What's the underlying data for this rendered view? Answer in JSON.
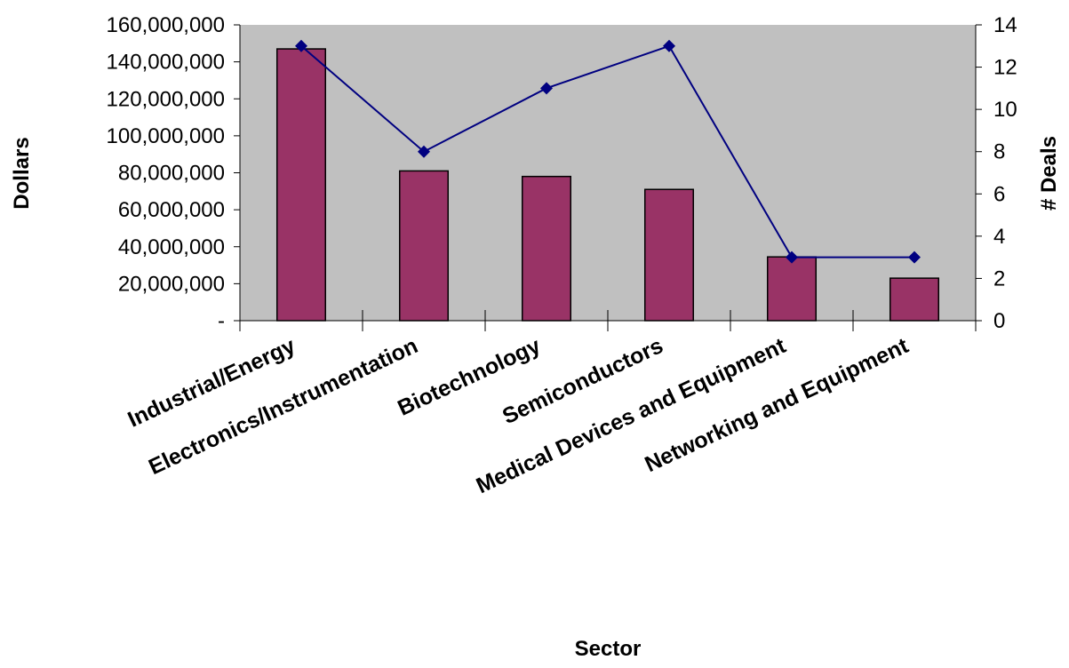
{
  "chart_data": {
    "type": "bar",
    "xlabel": "Sector",
    "ylabel": "Dollars",
    "y2label": "# Deals",
    "categories": [
      "Industrial/Energy",
      "Electronics/Instrumentation",
      "Biotechnology",
      "Semiconductors",
      "Medical Devices and Equipment",
      "Networking and Equipment"
    ],
    "series": [
      {
        "type": "bar",
        "axis": "left",
        "color": "#993366",
        "values": [
          147000000,
          81000000,
          78000000,
          71000000,
          34500000,
          23000000
        ]
      },
      {
        "type": "line",
        "axis": "right",
        "color": "#000080",
        "marker": "diamond",
        "values": [
          13,
          8,
          11,
          13,
          3,
          3
        ]
      }
    ],
    "ylim": [
      0,
      160000000
    ],
    "y_ticks": [
      0,
      20000000,
      40000000,
      60000000,
      80000000,
      100000000,
      120000000,
      140000000,
      160000000
    ],
    "y_tick_labels": [
      "-",
      "20,000,000",
      "40,000,000",
      "60,000,000",
      "80,000,000",
      "100,000,000",
      "120,000,000",
      "140,000,000",
      "160,000,000"
    ],
    "y2lim": [
      0,
      14
    ],
    "y2_ticks": [
      0,
      2,
      4,
      6,
      8,
      10,
      12,
      14
    ],
    "y2_tick_labels": [
      "0",
      "2",
      "4",
      "6",
      "8",
      "10",
      "12",
      "14"
    ],
    "plot_background": "#c0c0c0",
    "grid": false,
    "legend": "none"
  }
}
